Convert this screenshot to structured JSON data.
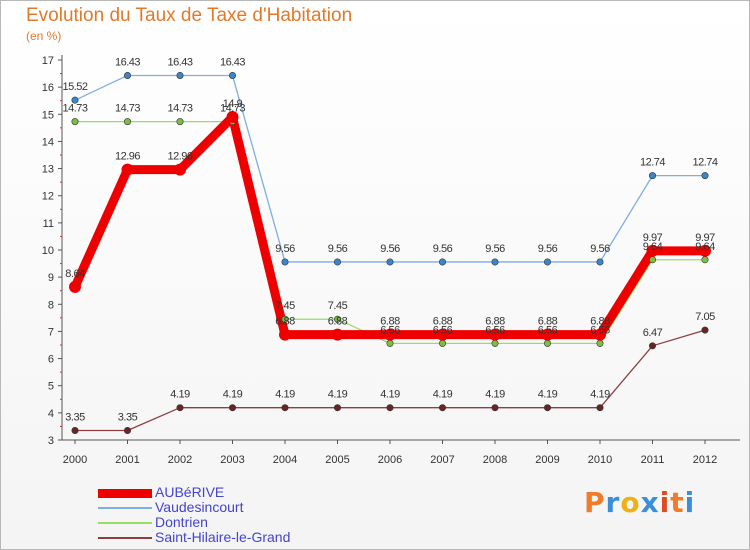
{
  "title": "Evolution du Taux de Taxe d'Habitation",
  "subtitle": "(en %)",
  "brand": {
    "text": "Proxiti",
    "colors": [
      "#f07c2a",
      "#3a8fd8",
      "#f0b018",
      "#3a8fd8",
      "#e04a20",
      "#f07c2a",
      "#3a8fd8"
    ]
  },
  "chart_data": {
    "type": "line",
    "x": [
      "2000",
      "2001",
      "2002",
      "2003",
      "2004",
      "2005",
      "2006",
      "2007",
      "2008",
      "2009",
      "2010",
      "2011",
      "2012"
    ],
    "ylim": [
      3,
      17
    ],
    "yticks": [
      "3",
      "4",
      "5",
      "6",
      "7",
      "8",
      "9",
      "10",
      "11",
      "12",
      "13",
      "14",
      "15",
      "16",
      "17"
    ],
    "grid": false,
    "legend_placement": "bottom-left",
    "series": [
      {
        "name": "AUBéRIVE",
        "color": "#ee0000",
        "values": [
          8.64,
          12.96,
          12.96,
          14.9,
          6.88,
          6.88,
          6.88,
          6.88,
          6.88,
          6.88,
          6.88,
          9.97,
          9.97
        ],
        "labels": [
          "8.64",
          "12.96",
          "12.96",
          "14.9",
          "6.88",
          "6.88",
          "6.88",
          "6.88",
          "6.88",
          "6.88",
          "6.88",
          "9.97",
          "9.97"
        ]
      },
      {
        "name": "Vaudesincourt",
        "color": "#7faee0",
        "values": [
          15.52,
          16.43,
          16.43,
          16.43,
          9.56,
          9.56,
          9.56,
          9.56,
          9.56,
          9.56,
          9.56,
          12.74,
          12.74
        ],
        "labels": [
          "15.52",
          "16.43",
          "16.43",
          "16.43",
          "9.56",
          "9.56",
          "9.56",
          "9.56",
          "9.56",
          "9.56",
          "9.56",
          "12.74",
          "12.74"
        ]
      },
      {
        "name": "Dontrien",
        "color": "#99dd66",
        "values": [
          14.73,
          14.73,
          14.73,
          14.73,
          7.45,
          7.45,
          6.56,
          6.56,
          6.56,
          6.56,
          6.56,
          9.64,
          9.64
        ],
        "labels": [
          "14.73",
          "14.73",
          "14.73",
          "14.73",
          "7.45",
          "7.45",
          "6.56",
          "6.56",
          "6.56",
          "6.56",
          "6.56",
          "9.64",
          "9.64"
        ]
      },
      {
        "name": "Saint-Hilaire-le-Grand",
        "color": "#8a4040",
        "values": [
          3.35,
          3.35,
          4.19,
          4.19,
          4.19,
          4.19,
          4.19,
          4.19,
          4.19,
          4.19,
          4.19,
          6.47,
          7.05
        ],
        "labels": [
          "3.35",
          "3.35",
          "4.19",
          "4.19",
          "4.19",
          "4.19",
          "4.19",
          "4.19",
          "4.19",
          "4.19",
          "4.19",
          "6.47",
          "7.05"
        ]
      }
    ]
  }
}
